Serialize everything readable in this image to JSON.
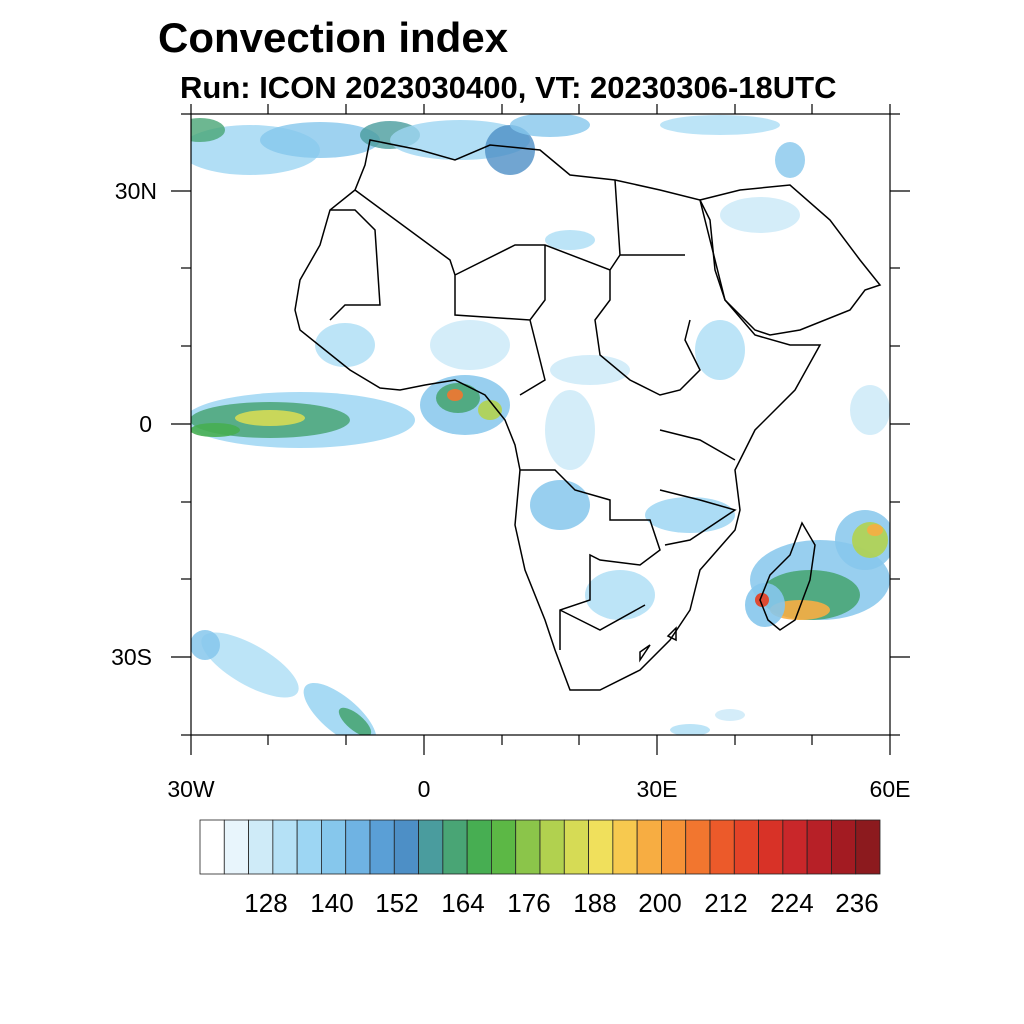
{
  "title": "Convection index",
  "subtitle": "Run: ICON 2023030400,  VT: 20230306-18UTC",
  "map": {
    "lon_range": [
      -30,
      60
    ],
    "lat_range": [
      -40,
      40
    ],
    "lat_ticks": [
      {
        "value": 30,
        "label": "30N"
      },
      {
        "value": 0,
        "label": "0"
      },
      {
        "value": -30,
        "label": "30S"
      }
    ],
    "lon_ticks": [
      {
        "value": -30,
        "label": "30W"
      },
      {
        "value": 0,
        "label": "0"
      },
      {
        "value": 30,
        "label": "30E"
      },
      {
        "value": 60,
        "label": "60E"
      }
    ]
  },
  "colorbar": {
    "colors": [
      "#ffffff",
      "#e8f5fc",
      "#cfebf8",
      "#b5e1f6",
      "#9dd6f3",
      "#86c7ec",
      "#6fb3e3",
      "#5a9fd6",
      "#4d8fc6",
      "#4a9c9e",
      "#49a575",
      "#47ae52",
      "#5cb845",
      "#8bc54a",
      "#b1d14f",
      "#d6db55",
      "#f0e05c",
      "#f7c94f",
      "#f7ad42",
      "#f69237",
      "#f2762f",
      "#ec5a2a",
      "#e34328",
      "#d83227",
      "#c9272a",
      "#b72027",
      "#a31b22",
      "#8c1a1e"
    ],
    "labels": [
      "128",
      "140",
      "152",
      "164",
      "176",
      "188",
      "200",
      "212",
      "224",
      "236"
    ]
  }
}
